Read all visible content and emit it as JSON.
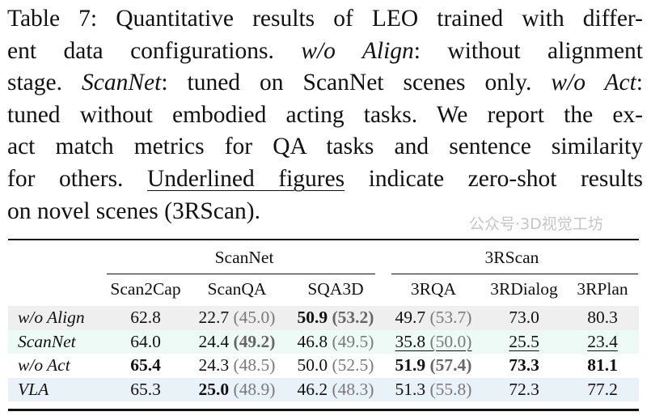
{
  "caption": {
    "lines": [
      [
        {
          "t": "Table 7: Quantitative results of LEO trained with differ-"
        }
      ],
      [
        {
          "t": "ent data configurations. "
        },
        {
          "t": "w/o Align",
          "style": "italic"
        },
        {
          "t": ": without alignment"
        }
      ],
      [
        {
          "t": "stage. "
        },
        {
          "t": "ScanNet",
          "style": "italic"
        },
        {
          "t": ": tuned on ScanNet scenes only. "
        },
        {
          "t": "w/o Act",
          "style": "italic"
        },
        {
          "t": ":"
        }
      ],
      [
        {
          "t": "tuned without embodied acting tasks. We report the ex-"
        }
      ],
      [
        {
          "t": "act match metrics for QA tasks and sentence similarity"
        }
      ],
      [
        {
          "t": "for others. "
        },
        {
          "t": "Underlined figures",
          "style": "underline"
        },
        {
          "t": " indicate zero-shot results"
        }
      ],
      [
        {
          "t": "on novel scenes (3RScan)."
        }
      ]
    ]
  },
  "table": {
    "groups": [
      "ScanNet",
      "3RScan"
    ],
    "columns": [
      "Scan2Cap",
      "ScanQA",
      "SQA3D",
      "3RQA",
      "3RDialog",
      "3RPlan"
    ],
    "rows": [
      {
        "label": "w/o Align",
        "bg": "#efefef",
        "cells": [
          {
            "v": "62.8"
          },
          {
            "v": "22.7",
            "s": "(45.0)"
          },
          {
            "v": "50.9",
            "vb": true,
            "s": "(53.2)",
            "sb": true
          },
          {
            "v": "49.7",
            "s": "(53.7)"
          },
          {
            "v": "73.0"
          },
          {
            "v": "80.3"
          }
        ]
      },
      {
        "label": "ScanNet",
        "bg": "#eefaf5",
        "cells": [
          {
            "v": "64.0"
          },
          {
            "v": "24.4",
            "s": "(49.2)",
            "sb": true
          },
          {
            "v": "46.8",
            "s": "(49.5)"
          },
          {
            "v": "35.8",
            "s": "(50.0)",
            "u": true
          },
          {
            "v": "25.5",
            "u": true
          },
          {
            "v": "23.4",
            "u": true
          }
        ]
      },
      {
        "label": "w/o Act",
        "bg": "#ffffff",
        "cells": [
          {
            "v": "65.4",
            "vb": true
          },
          {
            "v": "24.3",
            "s": "(48.5)"
          },
          {
            "v": "50.0",
            "s": "(52.5)"
          },
          {
            "v": "51.9",
            "vb": true,
            "s": "(57.4)",
            "sb": true
          },
          {
            "v": "73.3",
            "vb": true
          },
          {
            "v": "81.1",
            "vb": true
          }
        ]
      },
      {
        "label": "VLA",
        "bg": "#e9f1f9",
        "cells": [
          {
            "v": "65.3"
          },
          {
            "v": "25.0",
            "vb": true,
            "s": "(48.9)"
          },
          {
            "v": "46.2",
            "s": "(48.3)"
          },
          {
            "v": "51.3",
            "s": "(55.8)"
          },
          {
            "v": "72.3"
          },
          {
            "v": "77.2"
          }
        ]
      }
    ]
  },
  "watermark": "公众号·3D视觉工坊"
}
